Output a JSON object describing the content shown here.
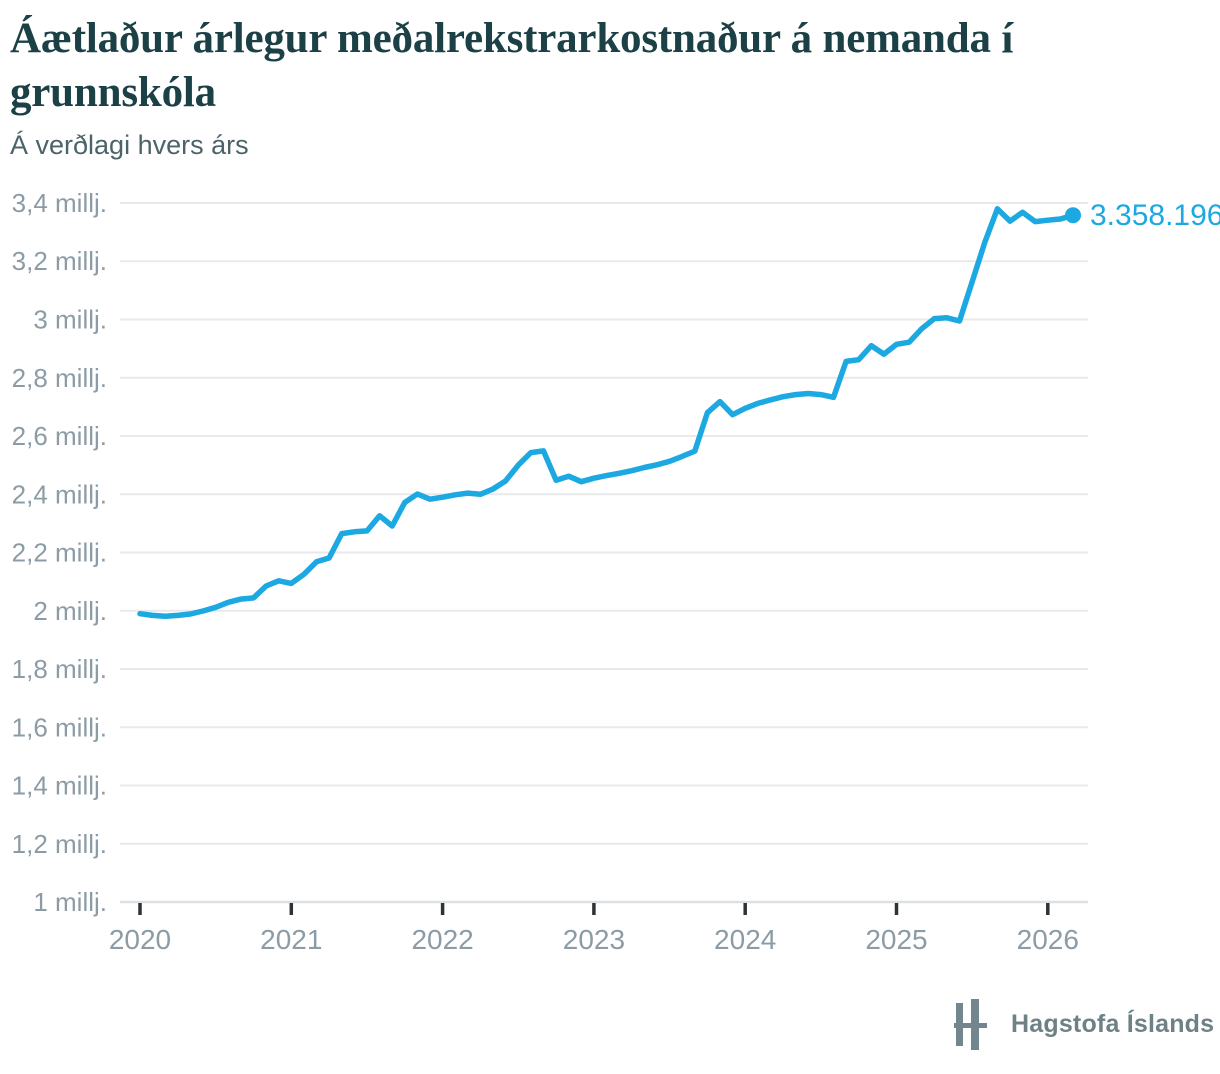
{
  "title": "Áætlaður árlegur meðalrekstrarkostnaður á nemanda í grunnskóla",
  "subtitle": "Á verðlagi hvers árs",
  "footer": {
    "logo_text": "Hagstofa Íslands"
  },
  "colors": {
    "line": "#1CA8E1",
    "title": "#1B4045",
    "subtitle": "#4C6469",
    "axis_label": "#8C9CA6",
    "gridline": "#E8E9EA",
    "axis_line": "#DEE0E1",
    "tick": "#2E3336",
    "logo": "#73868D"
  },
  "chart_data": {
    "type": "line",
    "title": "Áætlaður árlegur meðalrekstrarkostnaður á nemanda í grunnskóla",
    "subtitle": "Á verðlagi hvers árs",
    "xlabel": "",
    "ylabel": "",
    "unit": "millj.",
    "grid": "horizontal gridlines on, vertical off",
    "legend": "none",
    "ylim": [
      1.0,
      3.4
    ],
    "xlim": [
      2019.85,
      2026.4
    ],
    "end_label": "3.358.196",
    "end_value_kr": 3358196,
    "y_ticks": [
      {
        "value": 3.4,
        "label": "3,4 millj."
      },
      {
        "value": 3.2,
        "label": "3,2 millj."
      },
      {
        "value": 3.0,
        "label": "3 millj."
      },
      {
        "value": 2.8,
        "label": "2,8 millj."
      },
      {
        "value": 2.6,
        "label": "2,6 millj."
      },
      {
        "value": 2.4,
        "label": "2,4 millj."
      },
      {
        "value": 2.2,
        "label": "2,2 millj."
      },
      {
        "value": 2.0,
        "label": "2 millj."
      },
      {
        "value": 1.8,
        "label": "1,8 millj."
      },
      {
        "value": 1.6,
        "label": "1,6 millj."
      },
      {
        "value": 1.4,
        "label": "1,4 millj."
      },
      {
        "value": 1.2,
        "label": "1,2 millj."
      },
      {
        "value": 1.0,
        "label": "1 millj."
      }
    ],
    "x_ticks": [
      {
        "value": 2020,
        "label": "2020"
      },
      {
        "value": 2021,
        "label": "2021"
      },
      {
        "value": 2022,
        "label": "2022"
      },
      {
        "value": 2023,
        "label": "2023"
      },
      {
        "value": 2024,
        "label": "2024"
      },
      {
        "value": 2025,
        "label": "2025"
      },
      {
        "value": 2026,
        "label": "2026"
      }
    ],
    "series": [
      {
        "year": 2020,
        "monthly": [
          1.99,
          1.984,
          1.981,
          1.984,
          1.989,
          1.999,
          2.012,
          2.029,
          2.04,
          2.044,
          2.085,
          2.103
        ]
      },
      {
        "year": 2021,
        "monthly": [
          2.094,
          2.125,
          2.168,
          2.181,
          2.265,
          2.271,
          2.274,
          2.326,
          2.291,
          2.372,
          2.401,
          2.383
        ]
      },
      {
        "year": 2022,
        "monthly": [
          2.39,
          2.398,
          2.404,
          2.4,
          2.418,
          2.446,
          2.5,
          2.543,
          2.549,
          2.448,
          2.462,
          2.443
        ]
      },
      {
        "year": 2023,
        "monthly": [
          2.455,
          2.464,
          2.472,
          2.481,
          2.492,
          2.501,
          2.513,
          2.53,
          2.548,
          2.68,
          2.718,
          2.673
        ]
      },
      {
        "year": 2024,
        "monthly": [
          2.695,
          2.712,
          2.724,
          2.735,
          2.742,
          2.746,
          2.742,
          2.733,
          2.856,
          2.862,
          2.91,
          2.881
        ]
      },
      {
        "year": 2025,
        "monthly": [
          2.915,
          2.922,
          2.968,
          3.003,
          3.006,
          2.995,
          3.13,
          3.265,
          3.38,
          3.338,
          3.368,
          3.336
        ]
      },
      {
        "year": 2026,
        "monthly": [
          3.341,
          3.345,
          3.358196
        ]
      }
    ]
  }
}
